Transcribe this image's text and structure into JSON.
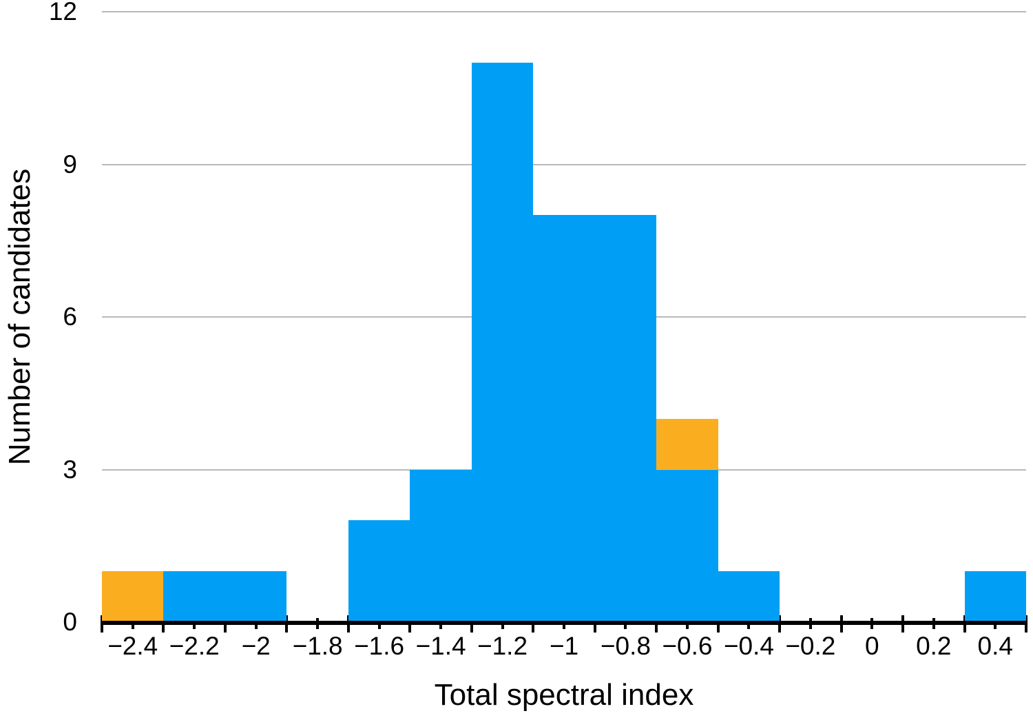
{
  "chart_data": {
    "type": "bar",
    "subtype": "histogram",
    "xlabel": "Total spectral index",
    "ylabel": "Number of candidates",
    "xlim": [
      -2.5,
      0.5
    ],
    "ylim": [
      0,
      12
    ],
    "yticks": [
      0,
      3,
      6,
      9,
      12
    ],
    "ytick_labels": [
      "0",
      "3",
      "6",
      "9",
      "12"
    ],
    "xtick_label_values": [
      -2.4,
      -2.2,
      -2.0,
      -1.8,
      -1.6,
      -1.4,
      -1.2,
      -1.0,
      -0.8,
      -0.6,
      -0.4,
      -0.2,
      0.0,
      0.2,
      0.4
    ],
    "xtick_labels": [
      "−2.4",
      "−2.2",
      "−2",
      "−1.8",
      "−1.6",
      "−1.4",
      "−1.2",
      "−1",
      "−0.8",
      "−0.6",
      "−0.4",
      "−0.2",
      "0",
      "0.2",
      "0.4"
    ],
    "xticks_minor_interval": 0.1,
    "bin_width": 0.2,
    "bin_edges": [
      -2.5,
      -2.3,
      -2.1,
      -1.9,
      -1.7,
      -1.5,
      -1.3,
      -1.1,
      -0.9,
      -0.7,
      -0.5,
      -0.3,
      -0.1,
      0.1,
      0.3,
      0.5
    ],
    "stacked": true,
    "grid": "horizontal",
    "legend": "none",
    "series": [
      {
        "name": "blue",
        "color": "#009FF5",
        "values": [
          0,
          1,
          1,
          0,
          2,
          3,
          11,
          8,
          8,
          3,
          1,
          0,
          0,
          0,
          1
        ]
      },
      {
        "name": "orange",
        "color": "#FBAD20",
        "values": [
          1,
          0,
          0,
          0,
          0,
          0,
          0,
          0,
          0,
          1,
          0,
          0,
          0,
          0,
          0
        ]
      }
    ],
    "colors": {
      "axis": "#000000",
      "gridline": "#b9b9b9",
      "background": "#ffffff",
      "text": "#000000"
    }
  }
}
